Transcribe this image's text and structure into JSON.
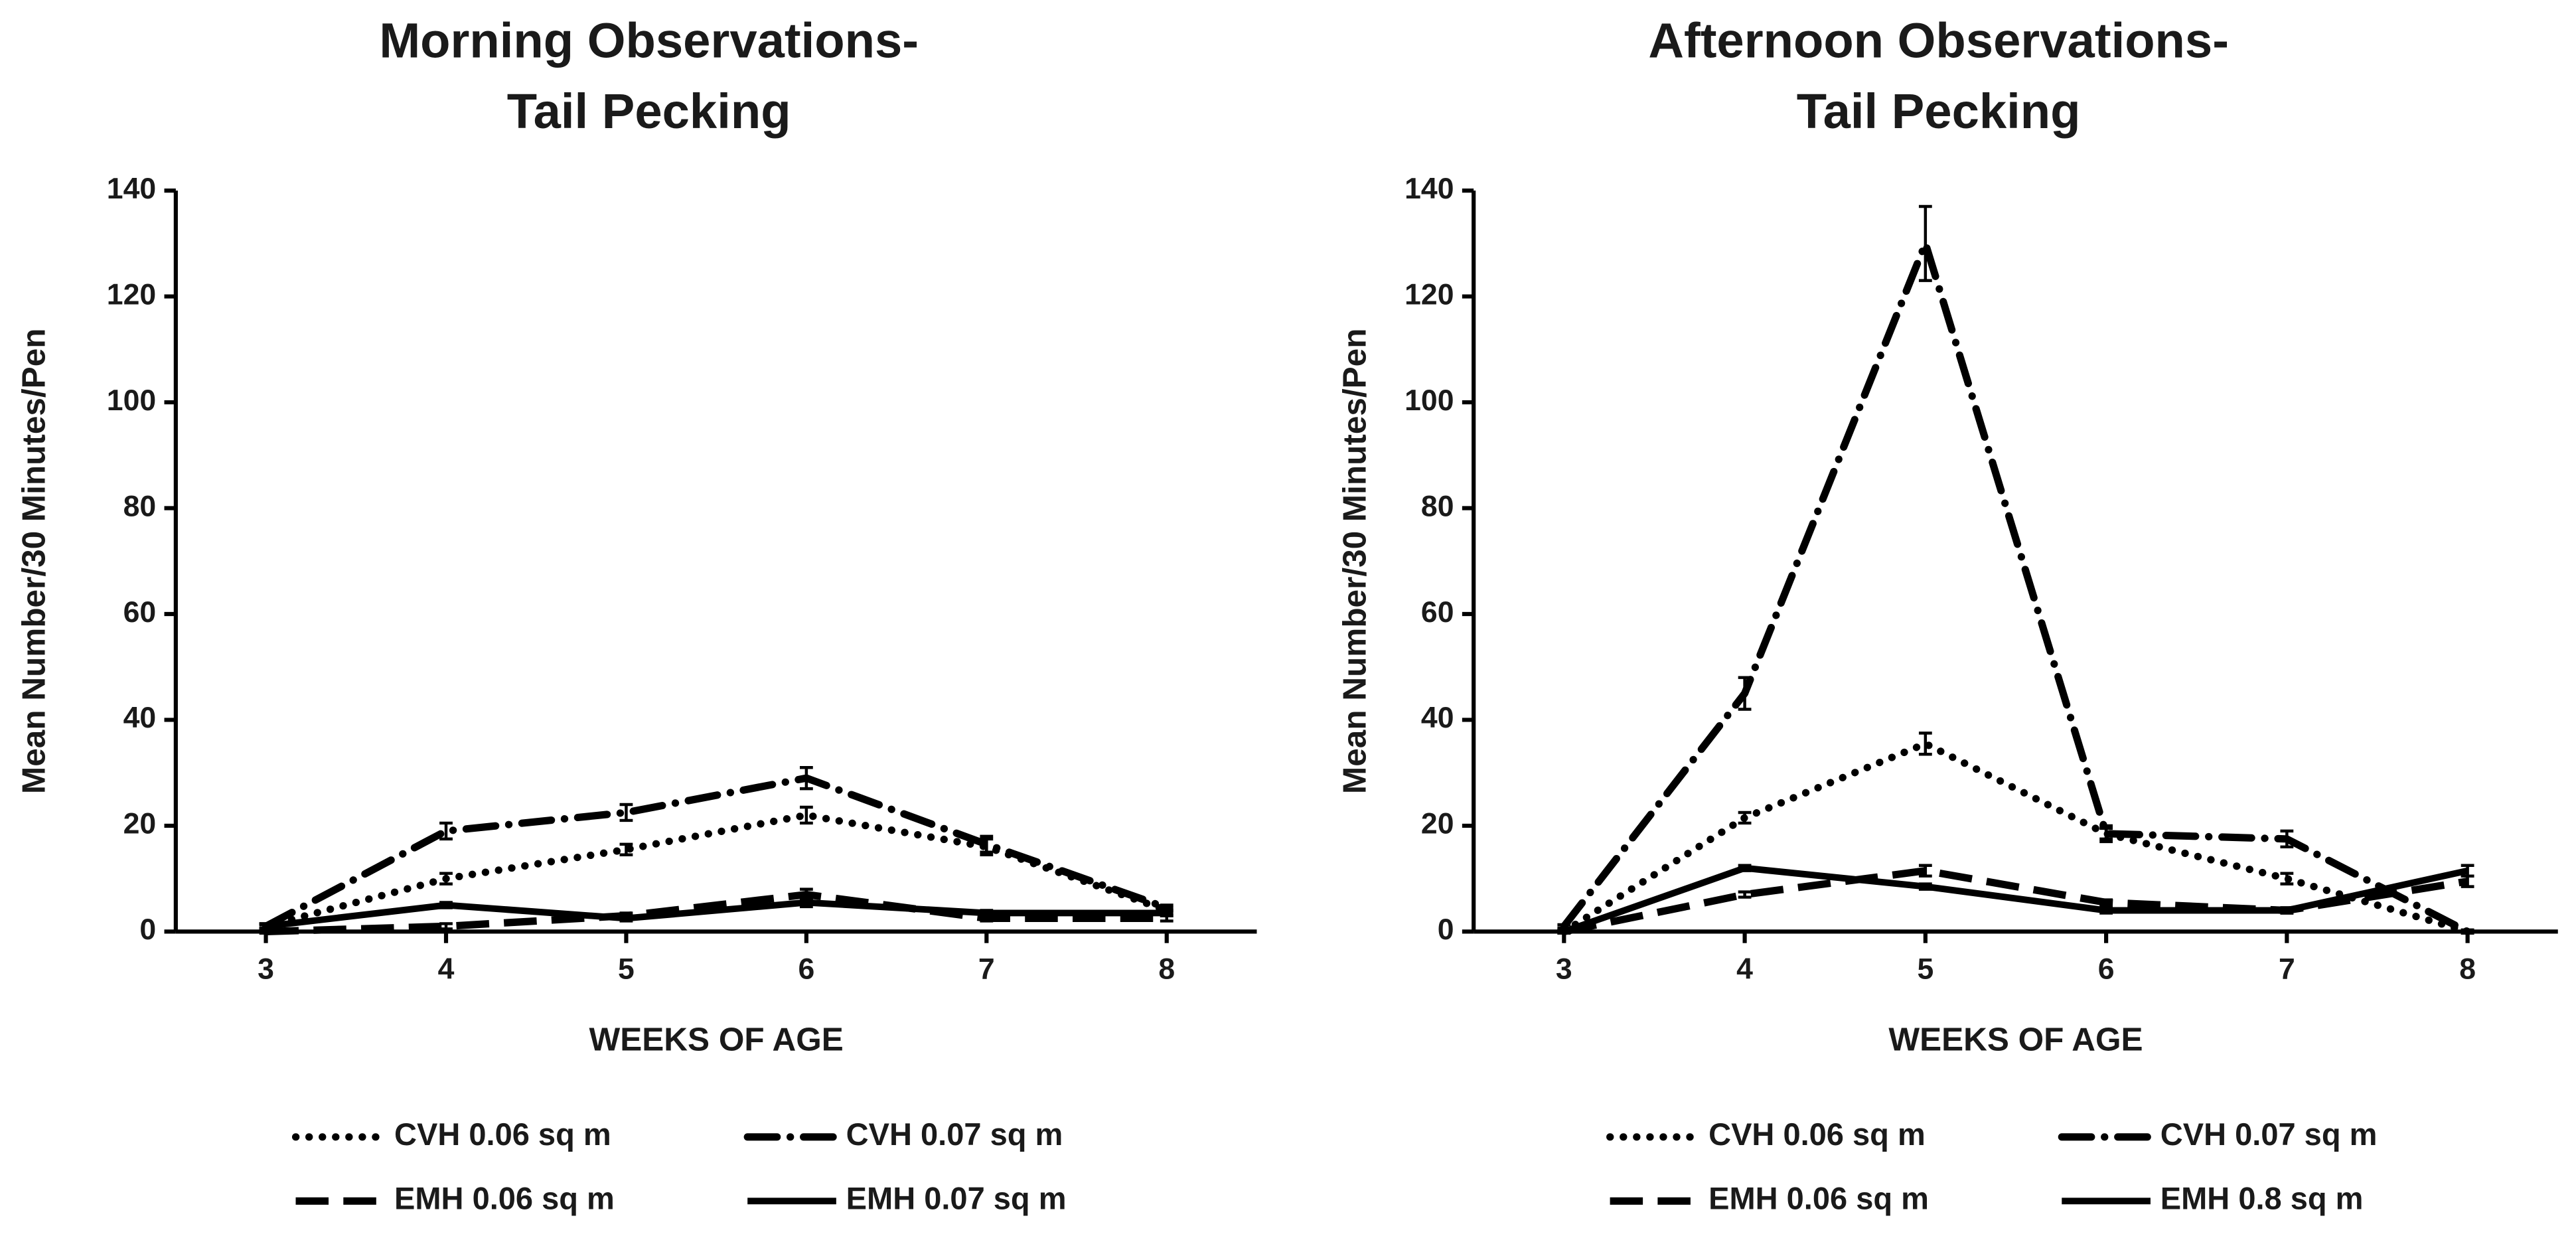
{
  "chart_data": [
    {
      "type": "line",
      "title": [
        "Morning Observations-",
        "Tail Pecking"
      ],
      "x_label": "WEEKS OF AGE",
      "y_label": "Mean Number/30 Minutes/Pen",
      "x": [
        3,
        4,
        5,
        6,
        7,
        8
      ],
      "xlim": [
        2.5,
        8.5
      ],
      "xticks": [
        3,
        4,
        5,
        6,
        7,
        8
      ],
      "ylim": [
        0,
        140
      ],
      "yticks": [
        0,
        20,
        40,
        60,
        80,
        100,
        120,
        140
      ],
      "series": [
        {
          "name": "CVH 0.06 sq m",
          "color": "#000000",
          "dash": "dotted",
          "values": [
            1,
            10,
            15.5,
            22,
            16,
            4
          ],
          "errors": [
            0.5,
            1,
            1,
            1.5,
            1.5,
            0.5
          ]
        },
        {
          "name": "CVH 0.07 sq m",
          "color": "#000000",
          "dash": "dashdot",
          "values": [
            1,
            19,
            22.5,
            29,
            16.5,
            4.5
          ],
          "errors": [
            0.5,
            1.5,
            1.5,
            2,
            1.5,
            0.5
          ]
        },
        {
          "name": "EMH 0.06 sq m",
          "color": "#000000",
          "dash": "dashed",
          "values": [
            0,
            1,
            3,
            7,
            2.5,
            2.5
          ],
          "errors": [
            0.3,
            0.5,
            0.5,
            1,
            0.5,
            0.5
          ]
        },
        {
          "name": "EMH 0.07 sq m",
          "color": "#000000",
          "dash": "solid",
          "values": [
            1,
            5,
            2.5,
            5.5,
            3.5,
            3.5
          ],
          "errors": [
            0.3,
            0.5,
            0.5,
            0.8,
            0.5,
            0.5
          ]
        }
      ]
    },
    {
      "type": "line",
      "title": [
        "Afternoon Observations-",
        "Tail Pecking"
      ],
      "x_label": "WEEKS OF AGE",
      "y_label": "Mean Number/30 Minutes/Pen",
      "x": [
        3,
        4,
        5,
        6,
        7,
        8
      ],
      "xlim": [
        2.5,
        8.5
      ],
      "xticks": [
        3,
        4,
        5,
        6,
        7,
        8
      ],
      "ylim": [
        0,
        140
      ],
      "yticks": [
        0,
        20,
        40,
        60,
        80,
        100,
        120,
        140
      ],
      "series": [
        {
          "name": "CVH 0.06 sq m",
          "color": "#000000",
          "dash": "dotted",
          "values": [
            0,
            21.5,
            35.5,
            18.5,
            10,
            0
          ],
          "errors": [
            0.3,
            1,
            2,
            1,
            1,
            0.3
          ]
        },
        {
          "name": "CVH 0.07 sq m",
          "color": "#000000",
          "dash": "dashdot",
          "values": [
            1,
            45,
            130,
            18.5,
            17.5,
            0
          ],
          "errors": [
            0.3,
            3,
            7,
            1.5,
            1.5,
            0.3
          ]
        },
        {
          "name": "EMH 0.06 sq m",
          "color": "#000000",
          "dash": "dashed",
          "values": [
            0,
            7,
            11.5,
            5.5,
            4,
            9.5
          ],
          "errors": [
            0.3,
            0.5,
            1,
            0.5,
            0.5,
            1
          ]
        },
        {
          "name": "EMH 0.8 sq m",
          "color": "#000000",
          "dash": "solid",
          "values": [
            0,
            12,
            8.5,
            4,
            4,
            11.5
          ],
          "errors": [
            0.3,
            0.5,
            0.5,
            0.5,
            0.5,
            1
          ]
        }
      ]
    }
  ]
}
